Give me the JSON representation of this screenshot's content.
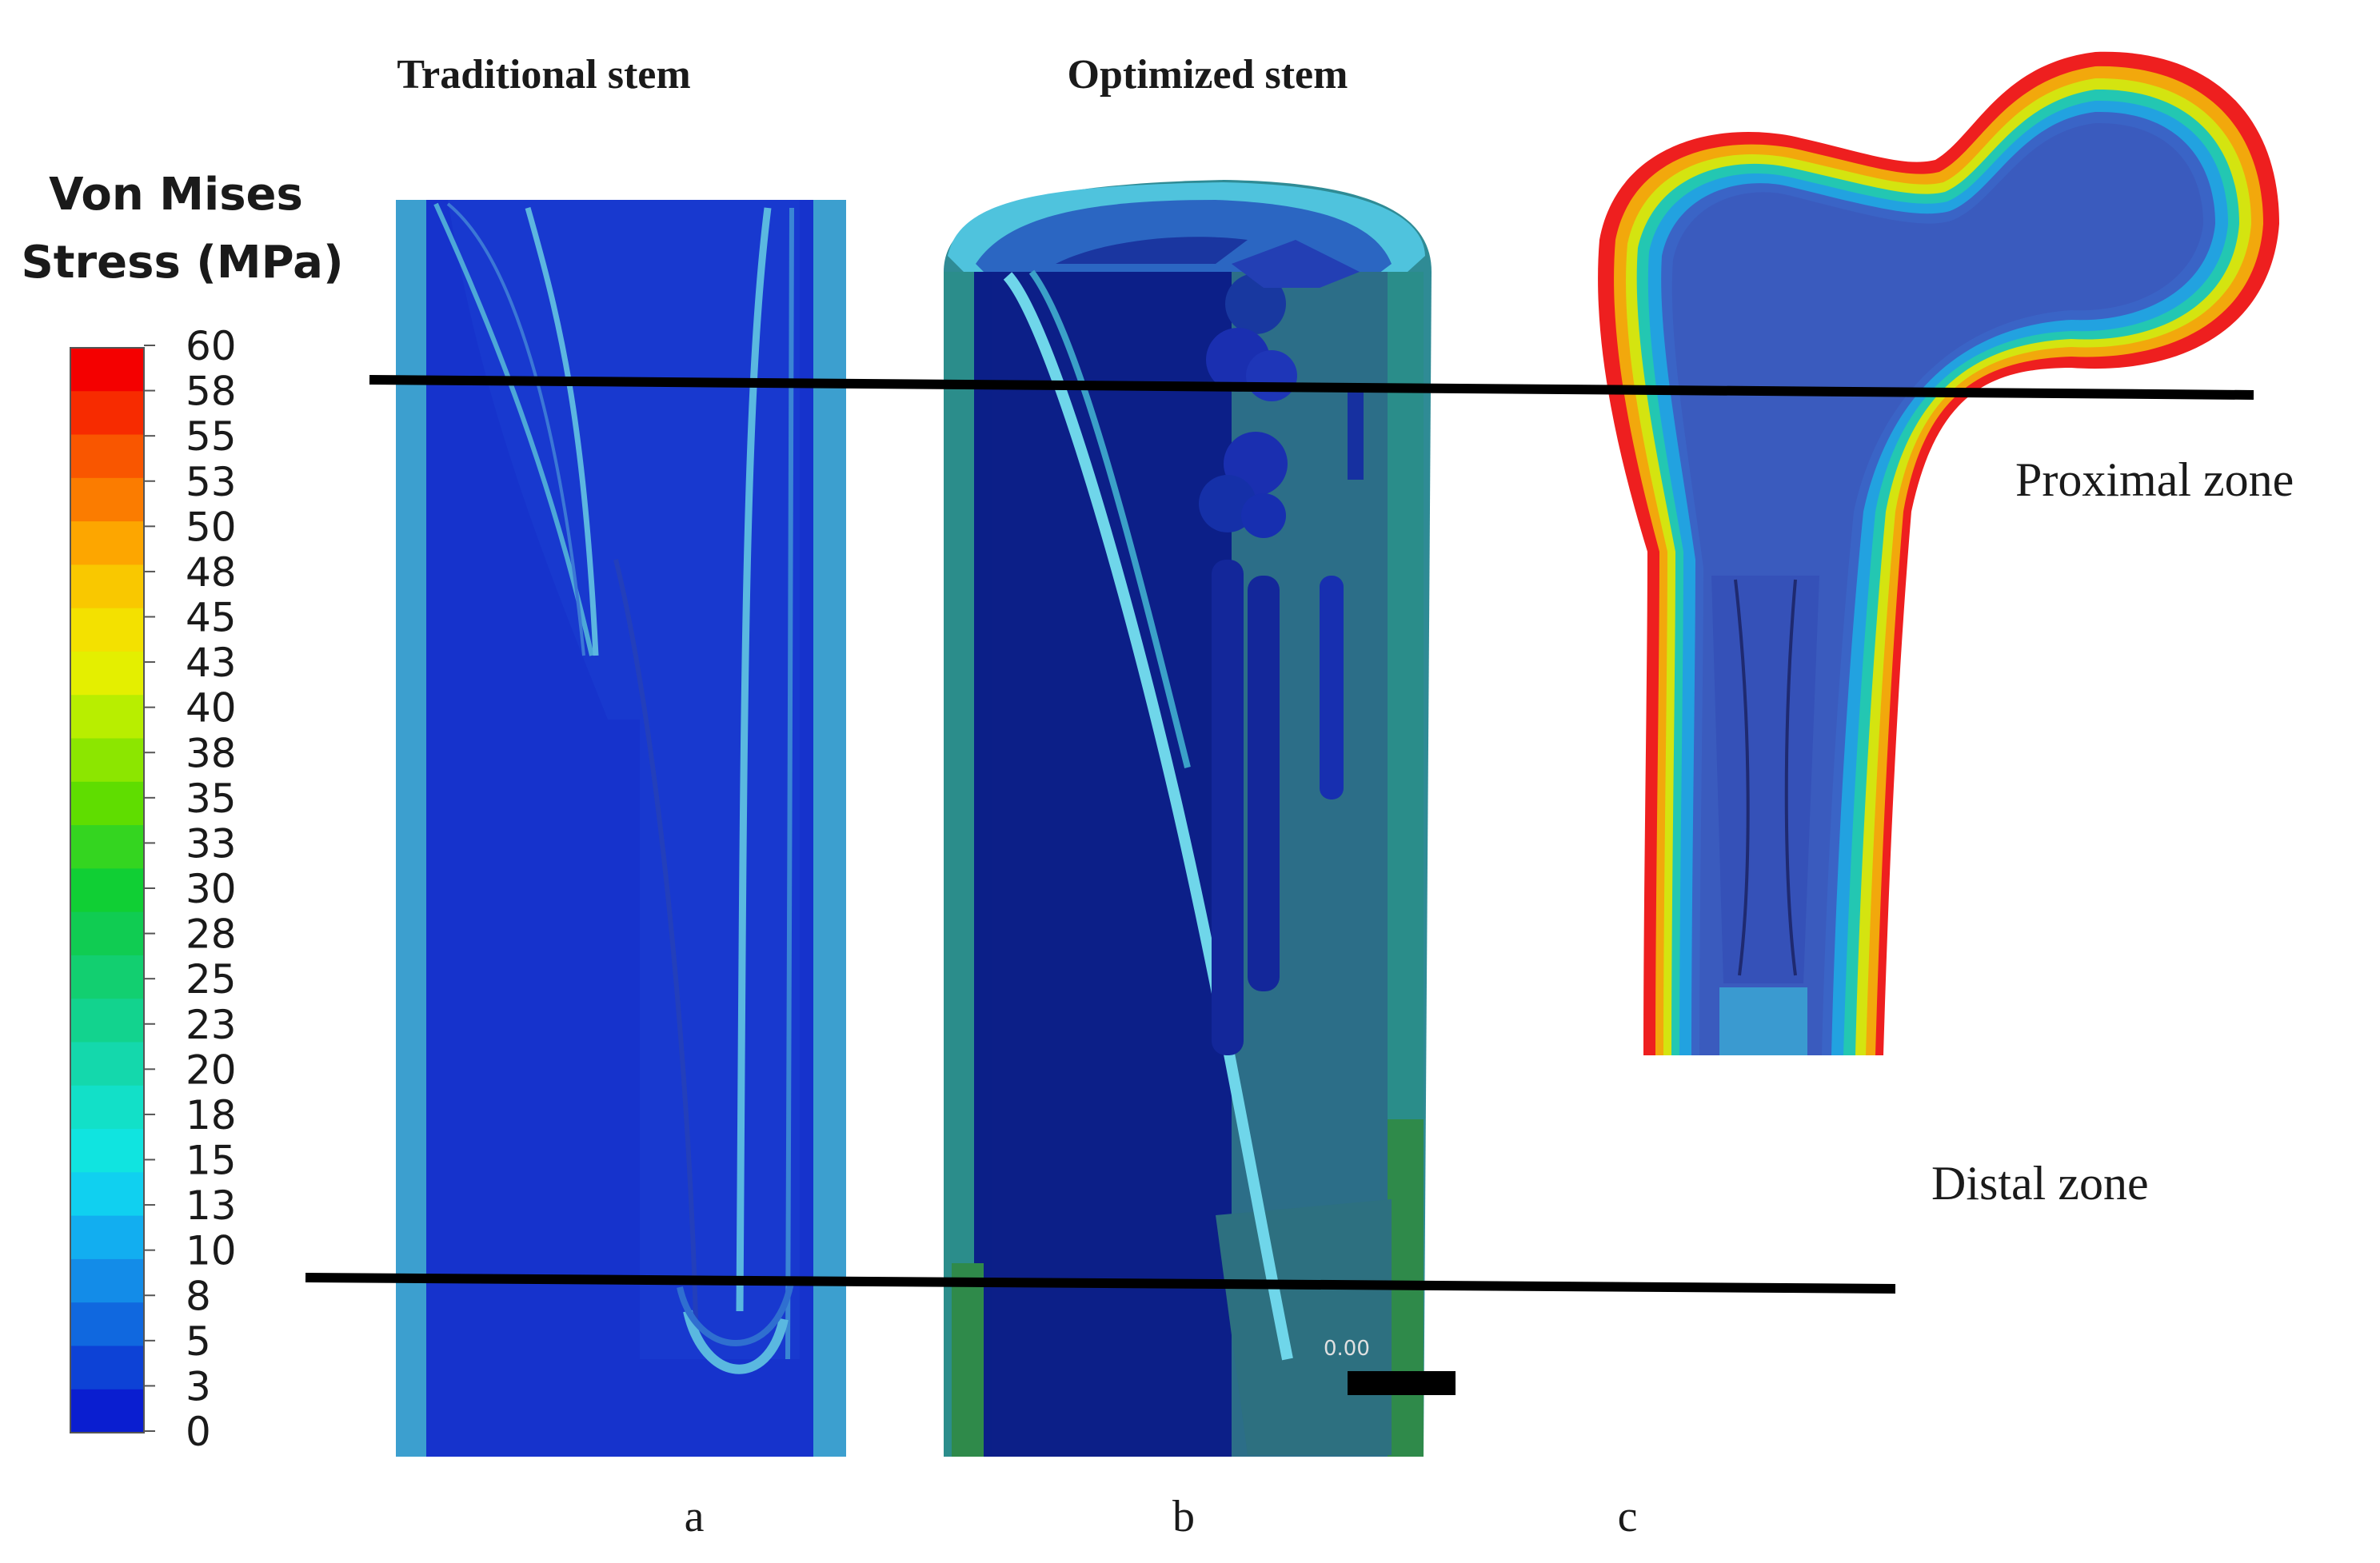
{
  "legend": {
    "title_line1": "Von Mises",
    "title_line2": "Stress (MPa)",
    "ticks": [
      "60",
      "58",
      "55",
      "53",
      "50",
      "48",
      "45",
      "43",
      "40",
      "38",
      "35",
      "33",
      "30",
      "28",
      "25",
      "23",
      "20",
      "18",
      "15",
      "13",
      "10",
      "8",
      "5",
      "3",
      "0"
    ],
    "colors": [
      "#f40000",
      "#f72b00",
      "#f95600",
      "#fb7c00",
      "#fda600",
      "#f9c800",
      "#f3e100",
      "#e4ef00",
      "#b8ee00",
      "#8ce600",
      "#5fdd00",
      "#34d520",
      "#10cf34",
      "#10cc52",
      "#12cf70",
      "#12d38e",
      "#14d8ac",
      "#12e0c8",
      "#10e4e0",
      "#10d0f0",
      "#12aef0",
      "#138ce8",
      "#1068df",
      "#0d42d6",
      "#0a1ed0"
    ]
  },
  "panels": {
    "a": {
      "title": "Traditional stem",
      "caption": "a"
    },
    "b": {
      "title": "Optimized stem",
      "caption": "b",
      "scale_text": "0.00"
    },
    "c": {
      "caption": "c"
    }
  },
  "zones": {
    "proximal": "Proximal zone",
    "distal": "Distal zone"
  }
}
